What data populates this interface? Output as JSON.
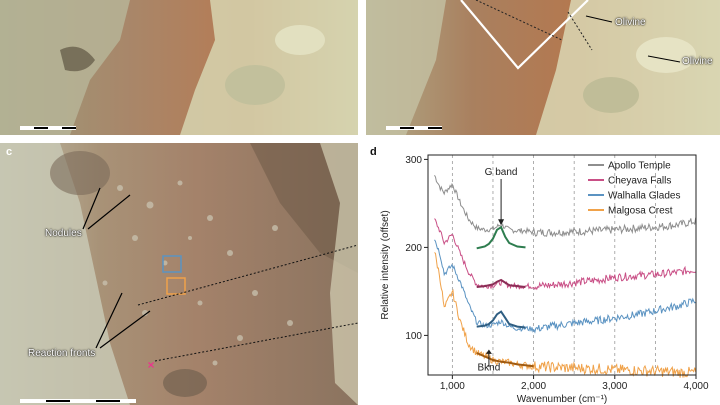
{
  "panels": {
    "a": {
      "scale_bar": true
    },
    "b": {
      "annotations": [
        "Olivine",
        "Olivine"
      ]
    },
    "c": {
      "label": "c",
      "annotations": {
        "nodules": "Nodules",
        "reaction_fronts": "Reaction fronts"
      }
    },
    "d": {
      "label": "d"
    }
  },
  "chart_data": {
    "type": "line",
    "xlabel": "Wavenumber (cm⁻¹)",
    "ylabel": "Relative intensity (offset)",
    "xlim": [
      700,
      4000
    ],
    "ylim": [
      55,
      305
    ],
    "xticks": [
      1000,
      2000,
      3000,
      4000
    ],
    "xtick_labels": [
      "1,000",
      "2,000",
      "3,000",
      "4,000"
    ],
    "yticks": [
      100,
      200,
      300
    ],
    "dashed_x": [
      1000,
      1500,
      2000,
      2500,
      3000,
      3500
    ],
    "legend_position": "top-right",
    "annotations": {
      "g_band": "G band",
      "bknd": "Bknd"
    },
    "series": [
      {
        "name": "Apollo Temple",
        "color": "#8e8e8e",
        "baseline": 223,
        "x": [
          780,
          850,
          900,
          1000,
          1100,
          1200,
          1300,
          1400,
          1500,
          1600,
          1700,
          1800,
          1900,
          2000,
          2200,
          2500,
          2800,
          3000,
          3300,
          3600,
          3800,
          4000
        ],
        "y": [
          282,
          268,
          262,
          272,
          250,
          232,
          222,
          220,
          221,
          226,
          220,
          219,
          219,
          217,
          217,
          218,
          219,
          220,
          222,
          224,
          226,
          230
        ]
      },
      {
        "name": "Cheyava Falls",
        "color": "#c94f86",
        "baseline": 170,
        "x": [
          780,
          850,
          900,
          1000,
          1100,
          1200,
          1300,
          1400,
          1500,
          1600,
          1700,
          1800,
          1900,
          2000,
          2200,
          2500,
          2800,
          3000,
          3300,
          3600,
          3800,
          4000
        ],
        "y": [
          232,
          218,
          205,
          215,
          192,
          172,
          158,
          156,
          157,
          160,
          157,
          156,
          156,
          156,
          157,
          160,
          163,
          166,
          168,
          170,
          172,
          175
        ]
      },
      {
        "name": "Walhalla Glades",
        "color": "#5b93c2",
        "baseline": 115,
        "x": [
          780,
          850,
          900,
          1000,
          1100,
          1200,
          1300,
          1400,
          1500,
          1600,
          1700,
          1800,
          1900,
          2000,
          2200,
          2500,
          2800,
          3000,
          3300,
          3600,
          3800,
          4000
        ],
        "y": [
          210,
          192,
          170,
          180,
          160,
          135,
          115,
          111,
          112,
          116,
          110,
          108,
          108,
          107,
          110,
          114,
          117,
          120,
          124,
          130,
          134,
          140
        ]
      },
      {
        "name": "Malgosa Crest",
        "color": "#f0a24a",
        "baseline": 70,
        "x": [
          780,
          850,
          900,
          1000,
          1100,
          1200,
          1300,
          1400,
          1500,
          1600,
          1700,
          1800,
          1900,
          2000,
          2200,
          2500,
          2800,
          3000,
          3300,
          3600,
          3800,
          4000
        ],
        "y": [
          195,
          165,
          130,
          150,
          115,
          90,
          80,
          76,
          72,
          70,
          69,
          67,
          66,
          65,
          64,
          63,
          62,
          61,
          60,
          59,
          58,
          58
        ]
      }
    ],
    "fits": [
      {
        "series": "Apollo Temple",
        "color": "#2e7d4f",
        "x": [
          1300,
          1350,
          1400,
          1450,
          1500,
          1550,
          1600,
          1650,
          1700,
          1800,
          1900
        ],
        "y": [
          199,
          200,
          201,
          204,
          210,
          220,
          223,
          212,
          205,
          201,
          200
        ]
      },
      {
        "series": "Cheyava Falls",
        "color": "#8b2d56",
        "x": [
          1300,
          1400,
          1500,
          1550,
          1600,
          1650,
          1700,
          1800,
          1900
        ],
        "y": [
          155,
          156,
          158,
          161,
          163,
          160,
          157,
          156,
          155
        ]
      },
      {
        "series": "Walhalla Glades",
        "color": "#2f5e82",
        "x": [
          1300,
          1400,
          1450,
          1500,
          1550,
          1600,
          1650,
          1700,
          1800,
          1900
        ],
        "y": [
          110,
          111,
          113,
          117,
          124,
          127,
          120,
          113,
          110,
          109
        ]
      },
      {
        "series": "Malgosa Crest",
        "color": "#a05a10",
        "x": [
          1300,
          1400,
          1500,
          1600,
          1700,
          1800,
          1900,
          2000
        ],
        "y": [
          80,
          76,
          72,
          70,
          69,
          67,
          66,
          65
        ]
      }
    ]
  }
}
